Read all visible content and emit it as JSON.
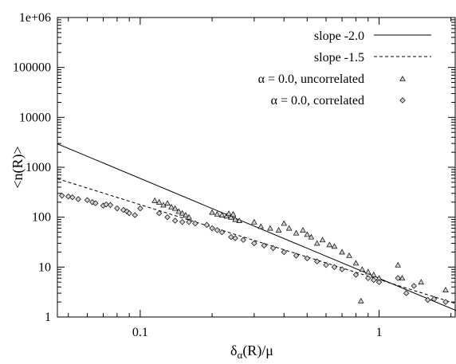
{
  "chart_data": {
    "type": "scatter",
    "xlabel": "δ_α(R)/μ",
    "xlabel_main": "δ",
    "xlabel_sub": "α",
    "xlabel_rest": "(R)/μ",
    "ylabel": "<n(R)>",
    "xscale": "log",
    "yscale": "log",
    "xlim": [
      0.045,
      2.1
    ],
    "ylim": [
      1,
      1000000
    ],
    "x_ticks": [
      {
        "value": 0.1,
        "label": "0.1"
      },
      {
        "value": 1,
        "label": "1"
      }
    ],
    "y_ticks": [
      {
        "value": 1,
        "label": "1"
      },
      {
        "value": 10,
        "label": "10"
      },
      {
        "value": 100,
        "label": "100"
      },
      {
        "value": 1000,
        "label": "1000"
      },
      {
        "value": 10000,
        "label": "10000"
      },
      {
        "value": 100000,
        "label": "100000"
      },
      {
        "value": 1000000,
        "label": "1e+06"
      }
    ],
    "legend_position": "top-right",
    "series": [
      {
        "name": "slope -2.0",
        "kind": "line",
        "style": "solid",
        "x": [
          0.045,
          2.1
        ],
        "y": [
          2950,
          1.35
        ]
      },
      {
        "name": "slope -1.5",
        "kind": "line",
        "style": "dashed",
        "x": [
          0.045,
          2.1
        ],
        "y": [
          590,
          1.85
        ]
      },
      {
        "name": "α = 0.0, uncorrelated",
        "kind": "points",
        "marker": "triangle",
        "x": [
          0.115,
          0.12,
          0.125,
          0.13,
          0.135,
          0.14,
          0.145,
          0.15,
          0.155,
          0.16,
          0.2,
          0.21,
          0.22,
          0.23,
          0.235,
          0.24,
          0.245,
          0.25,
          0.26,
          0.3,
          0.32,
          0.35,
          0.38,
          0.4,
          0.42,
          0.45,
          0.48,
          0.5,
          0.52,
          0.55,
          0.58,
          0.62,
          0.65,
          0.7,
          0.75,
          0.8,
          0.85,
          0.9,
          0.95,
          1.0,
          1.2,
          1.25,
          1.5,
          1.9
        ],
        "y": [
          215,
          200,
          175,
          190,
          160,
          150,
          130,
          120,
          110,
          100,
          125,
          115,
          110,
          105,
          118,
          100,
          115,
          90,
          85,
          80,
          65,
          60,
          55,
          75,
          60,
          48,
          55,
          45,
          40,
          30,
          35,
          28,
          26,
          20,
          17,
          12,
          9,
          8,
          7,
          6,
          11,
          6,
          5,
          3.5
        ]
      },
      {
        "name": "α = 0.0, correlated",
        "kind": "points",
        "marker": "diamond",
        "x": [
          0.047,
          0.05,
          0.052,
          0.055,
          0.06,
          0.063,
          0.065,
          0.07,
          0.072,
          0.075,
          0.08,
          0.085,
          0.088,
          0.09,
          0.095,
          0.1,
          0.12,
          0.13,
          0.14,
          0.15,
          0.16,
          0.17,
          0.19,
          0.2,
          0.21,
          0.22,
          0.24,
          0.25,
          0.27,
          0.3,
          0.33,
          0.36,
          0.4,
          0.45,
          0.5,
          0.55,
          0.6,
          0.65,
          0.7,
          0.8,
          0.9,
          0.95,
          1.0,
          1.2,
          1.3,
          1.4,
          1.6,
          1.7,
          1.9
        ],
        "y": [
          270,
          260,
          250,
          230,
          220,
          200,
          190,
          170,
          180,
          175,
          150,
          140,
          130,
          120,
          110,
          150,
          120,
          100,
          85,
          80,
          80,
          75,
          70,
          60,
          55,
          50,
          40,
          38,
          35,
          30,
          27,
          24,
          20,
          17,
          15,
          13,
          11,
          10,
          9,
          7,
          6,
          5.5,
          5,
          6,
          3,
          4.2,
          2.2,
          2.3,
          2
        ]
      }
    ],
    "extra_points": [
      {
        "x": 0.84,
        "y": 2.1,
        "marker": "triangle"
      }
    ]
  }
}
